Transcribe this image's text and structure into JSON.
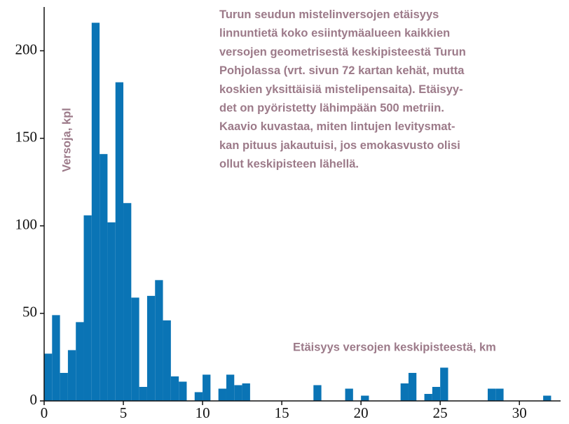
{
  "chart_data": {
    "type": "histogram",
    "annotation": [
      "Turun seudun mistelinversojen etäisyys",
      "linnuntietä koko esiintymäalueen kaikkien",
      "versojen geometrisestä keskipisteestä Turun",
      "Pohjolassa (vrt. sivun 72 kartan kehät, mutta",
      "koskien yksittäisiä mistelipensaita). Etäisyy-",
      "det on pyöristetty lähimpään 500 metriin.",
      "Kaavio kuvastaa, miten lintujen levitysmat-",
      "kan pituus jakautuisi, jos emokasvusto olisi",
      "ollut keskipisteen lähellä."
    ],
    "ylabel": "Versoja, kpl",
    "xlabel": "Etäisyys versojen keskipisteestä, km",
    "color": "#0a74b5",
    "bins": [
      0,
      0.5,
      1,
      1.5,
      2,
      2.5,
      3,
      3.5,
      4,
      4.5,
      5,
      5.5,
      6,
      6.5,
      7,
      7.5,
      8,
      8.5,
      9,
      9.5,
      10,
      10.5,
      11,
      11.5,
      12,
      12.5,
      13,
      13.5,
      14,
      14.5,
      15,
      15.5,
      16,
      16.5,
      17,
      17.5,
      18,
      18.5,
      19,
      19.5,
      20,
      20.5,
      21,
      21.5,
      22,
      22.5,
      23,
      23.5,
      24,
      24.5,
      25,
      25.5,
      26,
      26.5,
      27,
      27.5,
      28,
      28.5,
      29,
      29.5,
      30,
      30.5,
      31,
      31.5,
      32
    ],
    "values": [
      27,
      49,
      16,
      29,
      45,
      106,
      216,
      141,
      102,
      182,
      113,
      59,
      8,
      60,
      69,
      46,
      14,
      11,
      0,
      5,
      15,
      0,
      7,
      15,
      9,
      10,
      0,
      0,
      0,
      0,
      0,
      0,
      0,
      0,
      9,
      0,
      0,
      0,
      7,
      0,
      3,
      0,
      0,
      0,
      0,
      10,
      16,
      0,
      4,
      8,
      19,
      0,
      0,
      0,
      0,
      0,
      7,
      7,
      0,
      0,
      0,
      0,
      0,
      3
    ],
    "xlim": [
      0,
      32.6
    ],
    "ylim": [
      0,
      225
    ],
    "xticks": [
      0,
      5,
      10,
      15,
      20,
      25,
      30
    ],
    "yticks": [
      0,
      50,
      100,
      150,
      200
    ]
  }
}
